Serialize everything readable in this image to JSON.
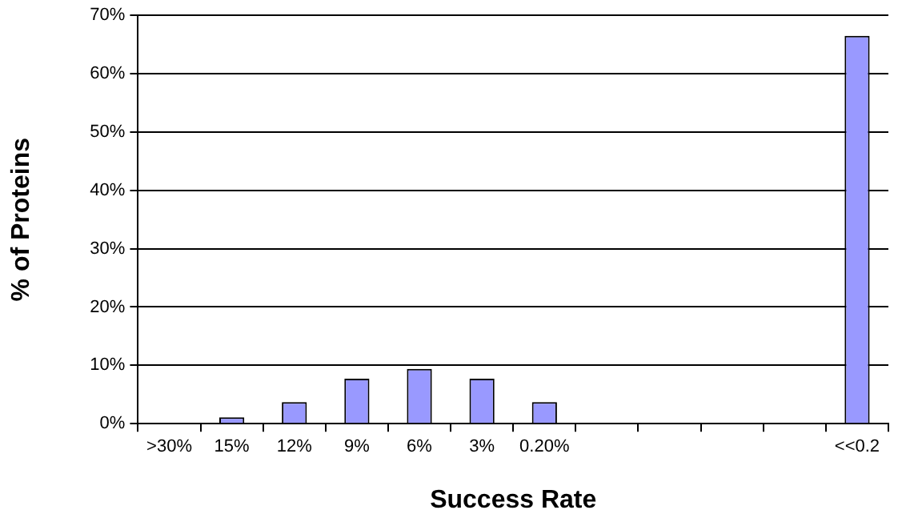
{
  "chart_data": {
    "type": "bar",
    "xlabel": "Success Rate",
    "ylabel": "% of Proteins",
    "categories": [
      ">30%",
      "15%",
      "12%",
      "9%",
      "6%",
      "3%",
      "0.20%",
      null,
      null,
      null,
      null,
      "<<0.2"
    ],
    "values": [
      0,
      1.1,
      3.7,
      7.7,
      9.4,
      7.7,
      3.7,
      0,
      0,
      0,
      0,
      66.5
    ],
    "color": "#9999ff",
    "ylim": [
      0,
      70
    ],
    "yticks": [
      {
        "value": 0,
        "label": "0%"
      },
      {
        "value": 10,
        "label": "10%"
      },
      {
        "value": 20,
        "label": "20%"
      },
      {
        "value": 30,
        "label": "30%"
      },
      {
        "value": 40,
        "label": "40%"
      },
      {
        "value": 50,
        "label": "50%"
      },
      {
        "value": 60,
        "label": "60%"
      },
      {
        "value": 70,
        "label": "70%"
      }
    ],
    "grid": "y",
    "legend": false
  }
}
